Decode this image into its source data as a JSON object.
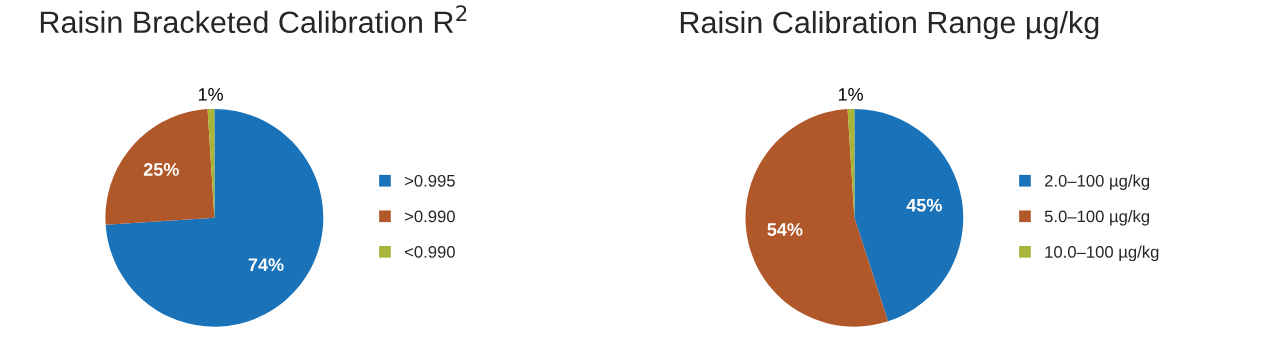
{
  "chart_data": [
    {
      "type": "pie",
      "title": "Raisin Bracketed Calibration R$^{2}$",
      "categories": [
        ">0.995",
        ">0.990",
        "<0.990"
      ],
      "values": [
        74,
        25,
        1
      ],
      "colors": [
        "#1a73b8",
        "#b0582a",
        "#a9b53a"
      ],
      "value_labels": [
        "74%",
        "25%",
        "1%"
      ],
      "legend": "right"
    },
    {
      "type": "pie",
      "title": "Raisin Calibration Range µg/kg",
      "categories": [
        "2.0–100 µg/kg",
        "5.0–100 µg/kg",
        "10.0–100 µg/kg"
      ],
      "values": [
        45,
        54,
        1
      ],
      "colors": [
        "#1a73b8",
        "#b0582a",
        "#a9b53a"
      ],
      "value_labels": [
        "45%",
        "54%",
        "1%"
      ],
      "legend": "right"
    }
  ]
}
